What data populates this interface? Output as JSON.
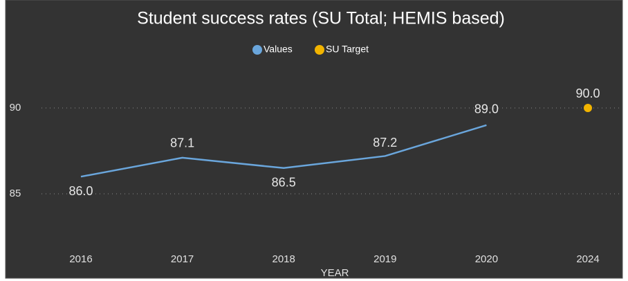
{
  "chart_data": {
    "type": "line",
    "title": "Student success rates (SU Total; HEMIS based)",
    "x_label": "YEAR",
    "categories": [
      "2016",
      "2017",
      "2018",
      "2019",
      "2020",
      "2024"
    ],
    "series": [
      {
        "name": "Values",
        "color": "#6aa6dc",
        "values": [
          86.0,
          87.1,
          86.5,
          87.2,
          89.0,
          null
        ],
        "value_labels": [
          "86.0",
          "87.1",
          "86.5",
          "87.2",
          "89.0",
          null
        ]
      },
      {
        "name": "SU Target",
        "color": "#f2b400",
        "values": [
          null,
          null,
          null,
          null,
          null,
          90.0
        ],
        "value_labels": [
          null,
          null,
          null,
          null,
          null,
          "90.0"
        ]
      }
    ],
    "ylim": [
      82.5,
      95
    ],
    "yticks": [
      85,
      90
    ],
    "grid": true,
    "legend": "top"
  }
}
